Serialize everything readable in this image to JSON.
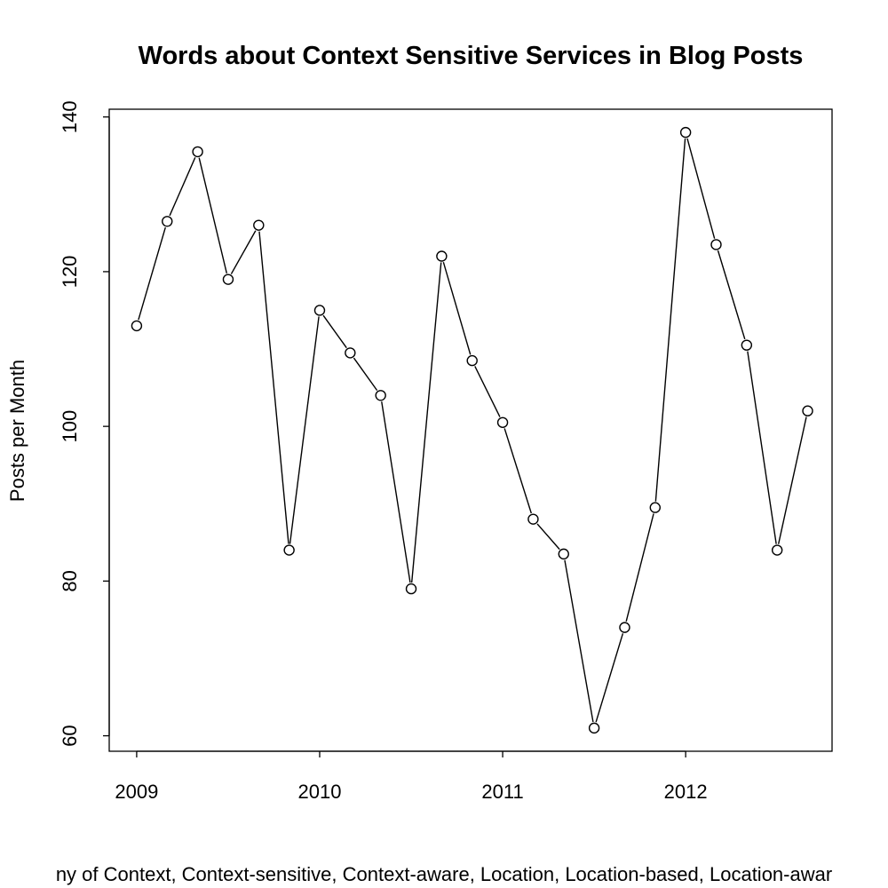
{
  "chart_data": {
    "type": "line",
    "title": "Words about Context Sensitive Services in Blog Posts",
    "ylabel": "Posts per Month",
    "xlabel": "ny of Context, Context-sensitive, Context-aware, Location, Location-based, Location-awar",
    "x": [
      2009.0,
      2009.1667,
      2009.3333,
      2009.5,
      2009.6667,
      2009.8333,
      2010.0,
      2010.1667,
      2010.3333,
      2010.5,
      2010.6667,
      2010.8333,
      2011.0,
      2011.1667,
      2011.3333,
      2011.5,
      2011.6667,
      2011.8333,
      2012.0,
      2012.1667,
      2012.3333,
      2012.5,
      2012.6667
    ],
    "series": [
      {
        "values": [
          113,
          126.5,
          135.5,
          119,
          126,
          84,
          115,
          109.5,
          104,
          79,
          122,
          108.5,
          100.5,
          88,
          83.5,
          61,
          74,
          89.5,
          138,
          123.5,
          110.5,
          84,
          102
        ]
      }
    ],
    "xticks": [
      2009,
      2010,
      2011,
      2012
    ],
    "xtick_labels": [
      "2009",
      "2010",
      "2011",
      "2012"
    ],
    "yticks": [
      60,
      80,
      100,
      120,
      140
    ],
    "ytick_labels": [
      "60",
      "80",
      "100",
      "120",
      "140"
    ],
    "xlim": [
      2008.85,
      2012.8
    ],
    "ylim": [
      58,
      141
    ],
    "grid": false,
    "marker": "open-circle",
    "line_color": "#000000"
  }
}
